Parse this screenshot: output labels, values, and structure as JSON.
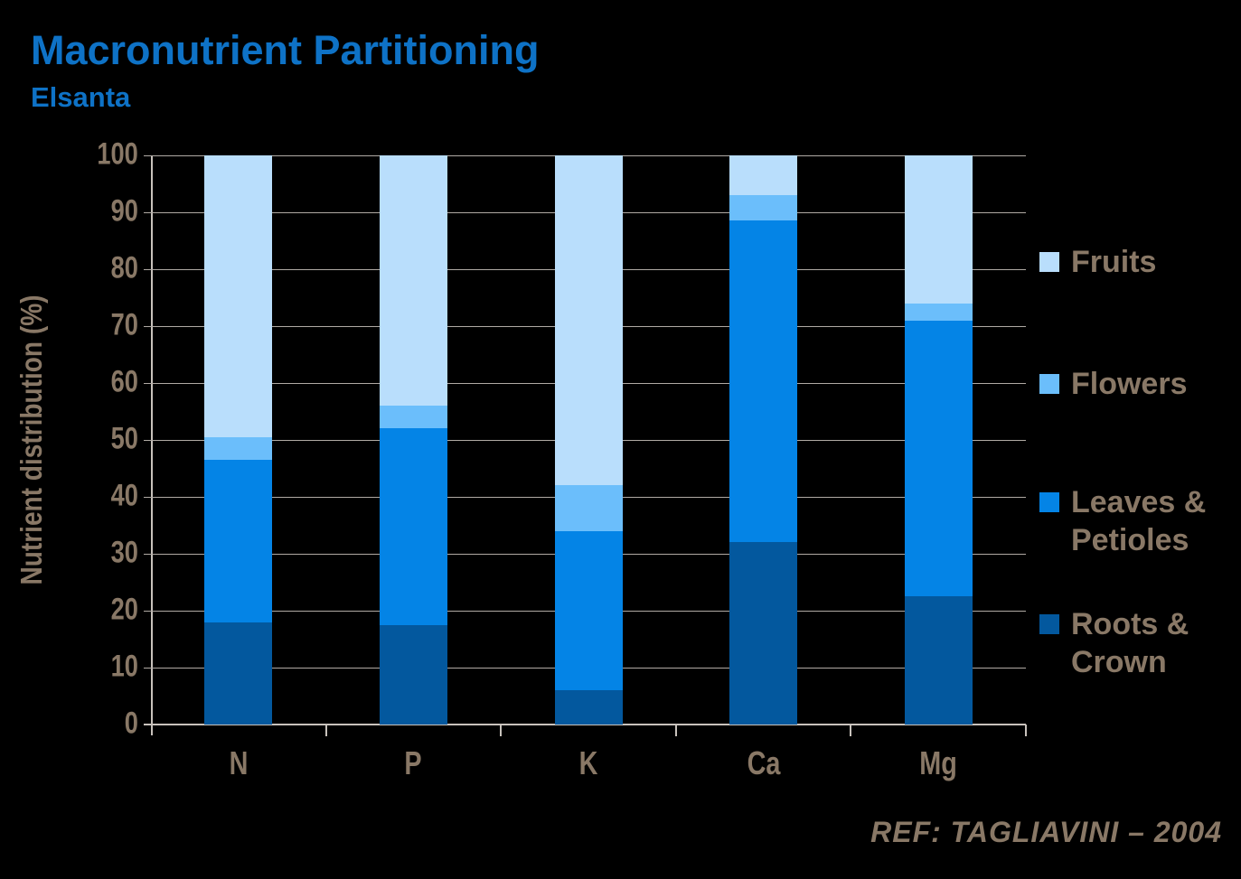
{
  "header": {
    "title": "Macronutrient Partitioning",
    "subtitle": "Elsanta"
  },
  "footer": {
    "reference": "REF: TAGLIAVINI – 2004"
  },
  "colors": {
    "background": "#000000",
    "title_text": "#0E72C6",
    "axis_text": "#897866",
    "gridline": "#B0AAA4",
    "axis_line": "#C8C2BC"
  },
  "chart_data": {
    "type": "bar",
    "stacked": true,
    "title": "Macronutrient Partitioning",
    "subtitle": "Elsanta",
    "xlabel": "",
    "ylabel": "Nutrient distribution (%)",
    "ylim": [
      0,
      100
    ],
    "yticks": [
      0,
      10,
      20,
      30,
      40,
      50,
      60,
      70,
      80,
      90,
      100
    ],
    "grid": true,
    "categories": [
      "N",
      "P",
      "K",
      "Ca",
      "Mg"
    ],
    "series": [
      {
        "name": "Roots & Crown",
        "color": "#03589E",
        "values": [
          18,
          17.5,
          6,
          32,
          22.5
        ]
      },
      {
        "name": "Leaves & Petioles",
        "color": "#0484E6",
        "values": [
          28.5,
          34.5,
          28,
          56.5,
          48.5
        ]
      },
      {
        "name": "Flowers",
        "color": "#6BBEFB",
        "values": [
          4,
          4,
          8,
          4.5,
          3
        ]
      },
      {
        "name": "Fruits",
        "color": "#B9DEFC",
        "values": [
          49.5,
          44,
          58,
          7,
          26
        ]
      }
    ],
    "legend": {
      "position": "right",
      "order": [
        "Fruits",
        "Flowers",
        "Leaves & Petioles",
        "Roots & Crown"
      ]
    }
  }
}
